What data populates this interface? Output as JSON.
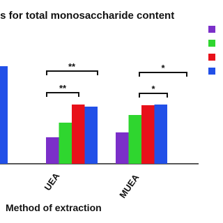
{
  "chart_data": {
    "type": "bar",
    "title": "is for total monosaccharide content",
    "x_label": "Method of extraction",
    "categories": [
      null,
      "UEA",
      "MUEA"
    ],
    "ylim": [
      0,
      150
    ],
    "series": [
      {
        "color": "#7b2fc9",
        "values": [
          null,
          38,
          45
        ]
      },
      {
        "color": "#2fd62f",
        "values": [
          null,
          59,
          70
        ]
      },
      {
        "color": "#e8101a",
        "values": [
          null,
          85,
          84
        ]
      },
      {
        "color": "#2250e8",
        "values": [
          140,
          82,
          85
        ]
      }
    ],
    "annotations": [
      "**",
      "**",
      "*",
      "*"
    ]
  }
}
